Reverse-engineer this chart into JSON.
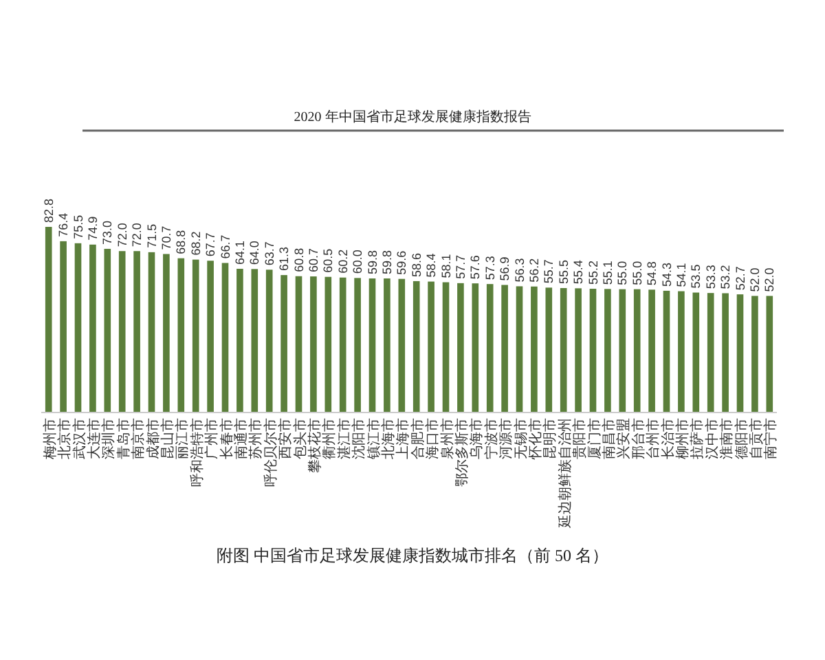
{
  "chart_data": {
    "type": "bar",
    "title": "2020 年中国省市足球发展健康指数报告",
    "categories": [
      "梅州市",
      "北京市",
      "武汉市",
      "大连市",
      "深圳市",
      "青岛市",
      "南京市",
      "成都市",
      "昆山市",
      "丽江市",
      "呼和浩特市",
      "广州市",
      "长春市",
      "南通市",
      "苏州市",
      "呼伦贝尔市",
      "西安市",
      "包头市",
      "攀枝花市",
      "衢州市",
      "湛江市",
      "沈阳市",
      "镇江市",
      "北海市",
      "上海市",
      "合肥市",
      "海口市",
      "泉州市",
      "鄂尔多斯市",
      "乌海市",
      "宁波市",
      "河源市",
      "无锡市",
      "怀化市",
      "昆明市",
      "延边朝鲜族自治州",
      "贵阳市",
      "厦门市",
      "南昌市",
      "兴安盟",
      "邢台市",
      "台州市",
      "长治市",
      "柳州市",
      "拉萨市",
      "汉中市",
      "淮南市",
      "德阳市",
      "自贡市",
      "南宁市"
    ],
    "values": [
      82.8,
      76.4,
      75.5,
      74.9,
      73.0,
      72.0,
      72.0,
      71.5,
      70.7,
      68.8,
      68.2,
      67.7,
      66.7,
      64.1,
      64.0,
      63.7,
      61.3,
      60.8,
      60.7,
      60.5,
      60.2,
      60.0,
      59.8,
      59.8,
      59.6,
      58.6,
      58.4,
      58.1,
      57.7,
      57.6,
      57.3,
      56.9,
      56.3,
      56.2,
      55.7,
      55.5,
      55.4,
      55.2,
      55.1,
      55.0,
      55.0,
      54.8,
      54.3,
      54.1,
      53.5,
      53.3,
      53.2,
      52.7,
      52.0,
      52.0
    ],
    "color": "#5b7f3b",
    "value_labels": [
      "82.8",
      "76.4",
      "75.5",
      "74.9",
      "73.0",
      "72.0",
      "72.0",
      "71.5",
      "70.7",
      "68.8",
      "68.2",
      "67.7",
      "66.7",
      "64.1",
      "64.0",
      "63.7",
      "61.3",
      "60.8",
      "60.7",
      "60.5",
      "60.2",
      "60.0",
      "59.8",
      "59.8",
      "59.6",
      "58.6",
      "58.4",
      "58.1",
      "57.7",
      "57.6",
      "57.3",
      "56.9",
      "56.3",
      "56.2",
      "55.7",
      "55.5",
      "55.4",
      "55.2",
      "55.1",
      "55.0",
      "55.0",
      "54.8",
      "54.3",
      "54.1",
      "53.5",
      "53.3",
      "53.2",
      "52.7",
      "52.0",
      "52.0"
    ],
    "annotations": [
      "附图  中国省市足球发展健康指数城市排名（前 50 名）"
    ]
  }
}
